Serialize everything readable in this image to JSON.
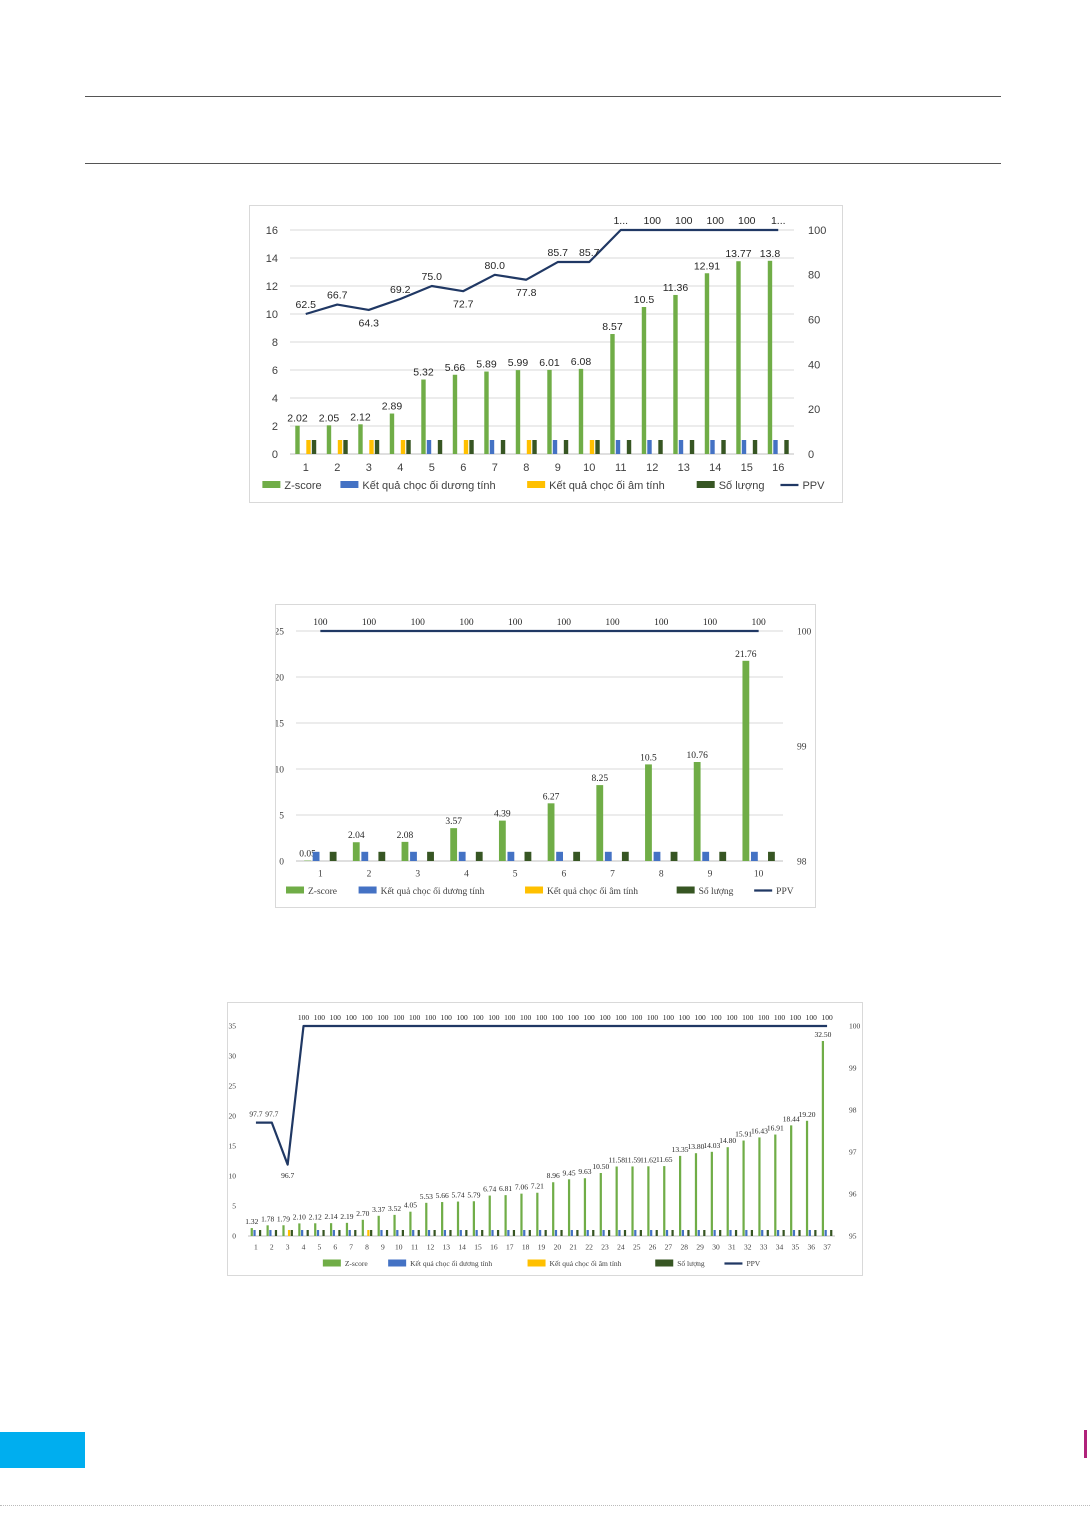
{
  "chart_data": [
    {
      "type": "bar",
      "categories": [
        "1",
        "2",
        "3",
        "4",
        "5",
        "6",
        "7",
        "8",
        "9",
        "10",
        "11",
        "12",
        "13",
        "14",
        "15",
        "16"
      ],
      "series": [
        {
          "name": "Z-score",
          "type": "bar",
          "axis": "left",
          "color": "#70ad47",
          "values": [
            2.02,
            2.05,
            2.12,
            2.89,
            5.32,
            5.66,
            5.89,
            5.99,
            6.01,
            6.08,
            8.57,
            10.5,
            11.36,
            12.91,
            13.77,
            13.8
          ],
          "labels": [
            "2.02",
            "2.05",
            "2.12",
            "2.89",
            "5.32",
            "5.66",
            "5.89",
            "5.99",
            "6.01",
            "6.08",
            "8.57",
            "10.5",
            "11.36",
            "12.91",
            "13.77",
            "13.8"
          ]
        },
        {
          "name": "Kết quả chọc ối dương tính",
          "type": "bar",
          "axis": "left",
          "color": "#4472c4",
          "values": [
            0,
            0,
            0,
            0,
            1,
            0,
            1,
            0,
            1,
            0,
            1,
            1,
            1,
            1,
            1,
            1
          ]
        },
        {
          "name": "Kết quả chọc ối âm tính",
          "type": "bar",
          "axis": "left",
          "color": "#ffc000",
          "values": [
            1,
            1,
            1,
            1,
            0,
            1,
            0,
            1,
            0,
            1,
            0,
            0,
            0,
            0,
            0,
            0
          ]
        },
        {
          "name": "Số lượng",
          "type": "bar",
          "axis": "left",
          "color": "#375623",
          "values": [
            1,
            1,
            1,
            1,
            1,
            1,
            1,
            1,
            1,
            1,
            1,
            1,
            1,
            1,
            1,
            1
          ]
        },
        {
          "name": "PPV",
          "type": "line",
          "axis": "right",
          "color": "#203864",
          "values": [
            62.5,
            66.7,
            64.3,
            69.2,
            75.0,
            72.7,
            80.0,
            77.8,
            85.7,
            85.7,
            100,
            100,
            100,
            100,
            100,
            100
          ],
          "labels": [
            "62.5",
            "66.7",
            "64.3",
            "69.2",
            "75.0",
            "72.7",
            "80.0",
            "77.8",
            "85.7",
            "85.7",
            "1...",
            "100",
            "100",
            "100",
            "100",
            "1..."
          ]
        }
      ],
      "ylim": [
        0,
        16
      ],
      "yticks": [
        "0",
        "2",
        "4",
        "6",
        "8",
        "10",
        "12",
        "14",
        "16"
      ],
      "y2lim": [
        0,
        100
      ],
      "y2ticks": [
        "0",
        "20",
        "40",
        "60",
        "80",
        "100"
      ],
      "grid": true,
      "legend": "bottom"
    },
    {
      "type": "bar",
      "categories": [
        "1",
        "2",
        "3",
        "4",
        "5",
        "6",
        "7",
        "8",
        "9",
        "10"
      ],
      "series": [
        {
          "name": "Z-score",
          "type": "bar",
          "axis": "left",
          "color": "#70ad47",
          "values": [
            0.05,
            2.04,
            2.08,
            3.57,
            4.39,
            6.27,
            8.25,
            10.5,
            10.76,
            21.76
          ],
          "labels": [
            "0.05",
            "2.04",
            "2.08",
            "3.57",
            "4.39",
            "6.27",
            "8.25",
            "10.5",
            "10.76",
            "21.76"
          ]
        },
        {
          "name": "Kết quả chọc ối dương tính",
          "type": "bar",
          "axis": "left",
          "color": "#4472c4",
          "values": [
            1,
            1,
            1,
            1,
            1,
            1,
            1,
            1,
            1,
            1
          ]
        },
        {
          "name": "Kết quả chọc ối âm tính",
          "type": "bar",
          "axis": "left",
          "color": "#ffc000",
          "values": [
            0,
            0,
            0,
            0,
            0,
            0,
            0,
            0,
            0,
            0
          ]
        },
        {
          "name": "Số lượng",
          "type": "bar",
          "axis": "left",
          "color": "#375623",
          "values": [
            1,
            1,
            1,
            1,
            1,
            1,
            1,
            1,
            1,
            1
          ]
        },
        {
          "name": "PPV",
          "type": "line",
          "axis": "right",
          "color": "#203864",
          "values": [
            100,
            100,
            100,
            100,
            100,
            100,
            100,
            100,
            100,
            100
          ],
          "labels": [
            "100",
            "100",
            "100",
            "100",
            "100",
            "100",
            "100",
            "100",
            "100",
            "100"
          ]
        }
      ],
      "ylim": [
        0,
        25
      ],
      "yticks": [
        "0",
        "5",
        "10",
        "15",
        "20",
        "25"
      ],
      "y2lim": [
        98,
        100
      ],
      "y2ticks": [
        "98",
        "99",
        "100"
      ],
      "grid": true,
      "legend": "bottom"
    },
    {
      "type": "bar",
      "categories": [
        "1",
        "2",
        "3",
        "4",
        "5",
        "6",
        "7",
        "8",
        "9",
        "10",
        "11",
        "12",
        "13",
        "14",
        "15",
        "16",
        "17",
        "18",
        "19",
        "20",
        "21",
        "22",
        "23",
        "24",
        "25",
        "26",
        "27",
        "28",
        "29",
        "30",
        "31",
        "32",
        "33",
        "34",
        "35",
        "36",
        "37"
      ],
      "series": [
        {
          "name": "Z-score",
          "type": "bar",
          "axis": "left",
          "color": "#70ad47",
          "values": [
            1.32,
            1.78,
            1.79,
            2.1,
            2.12,
            2.14,
            2.19,
            2.7,
            3.37,
            3.52,
            4.05,
            5.53,
            5.66,
            5.74,
            5.79,
            6.74,
            6.81,
            7.06,
            7.21,
            8.96,
            9.45,
            9.63,
            10.5,
            11.58,
            11.59,
            11.62,
            11.65,
            13.35,
            13.8,
            14.03,
            14.8,
            15.91,
            16.43,
            16.91,
            18.44,
            19.2,
            32.5
          ],
          "labels": [
            "1.32",
            "1.78",
            "1.79",
            "2.10",
            "2.12",
            "2.14",
            "2.19",
            "2.70",
            "3.37",
            "3.52",
            "4.05",
            "5.53",
            "5.66",
            "5.74",
            "5.79",
            "6.74",
            "6.81",
            "7.06",
            "7.21",
            "8.96",
            "9.45",
            "9.63",
            "10.50",
            "11.58",
            "11.59",
            "11.62",
            "11.65",
            "13.35",
            "13.80",
            "14.03",
            "14.80",
            "15.91",
            "16.43",
            "16.91",
            "18.44",
            "19.20",
            "32.50"
          ]
        },
        {
          "name": "Kết quả chọc ối dương tính",
          "type": "bar",
          "axis": "left",
          "color": "#4472c4",
          "values": [
            1,
            1,
            0,
            1,
            1,
            1,
            1,
            0,
            1,
            1,
            1,
            1,
            1,
            1,
            1,
            1,
            1,
            1,
            1,
            1,
            1,
            1,
            1,
            1,
            1,
            1,
            1,
            1,
            1,
            1,
            1,
            1,
            1,
            1,
            1,
            1,
            1
          ]
        },
        {
          "name": "Kết quả chọc ối âm tính",
          "type": "bar",
          "axis": "left",
          "color": "#ffc000",
          "values": [
            0,
            0,
            1,
            0,
            0,
            0,
            0,
            1,
            0,
            0,
            0,
            0,
            0,
            0,
            0,
            0,
            0,
            0,
            0,
            0,
            0,
            0,
            0,
            0,
            0,
            0,
            0,
            0,
            0,
            0,
            0,
            0,
            0,
            0,
            0,
            0,
            0
          ]
        },
        {
          "name": "Số lượng",
          "type": "bar",
          "axis": "left",
          "color": "#375623",
          "values": [
            1,
            1,
            1,
            1,
            1,
            1,
            1,
            1,
            1,
            1,
            1,
            1,
            1,
            1,
            1,
            1,
            1,
            1,
            1,
            1,
            1,
            1,
            1,
            1,
            1,
            1,
            1,
            1,
            1,
            1,
            1,
            1,
            1,
            1,
            1,
            1,
            1
          ]
        },
        {
          "name": "PPV",
          "type": "line",
          "axis": "right",
          "color": "#203864",
          "values": [
            97.7,
            97.7,
            96.7,
            100,
            100,
            100,
            100,
            100,
            100,
            100,
            100,
            100,
            100,
            100,
            100,
            100,
            100,
            100,
            100,
            100,
            100,
            100,
            100,
            100,
            100,
            100,
            100,
            100,
            100,
            100,
            100,
            100,
            100,
            100,
            100,
            100,
            100
          ],
          "labels": [
            "97.7",
            "97.7",
            "96.7",
            "100",
            "100",
            "100",
            "100",
            "100",
            "100",
            "100",
            "100",
            "100",
            "100",
            "100",
            "100",
            "100",
            "100",
            "100",
            "100",
            "100",
            "100",
            "100",
            "100",
            "100",
            "100",
            "100",
            "100",
            "100",
            "100",
            "100",
            "100",
            "100",
            "100",
            "100",
            "100",
            "100",
            "100"
          ]
        }
      ],
      "ylim": [
        0,
        35
      ],
      "yticks": [
        "0",
        "5",
        "10",
        "15",
        "20",
        "25",
        "30",
        "35"
      ],
      "y2lim": [
        95,
        100
      ],
      "y2ticks": [
        "95",
        "96",
        "97",
        "98",
        "99",
        "100"
      ],
      "grid": false,
      "legend": "bottom"
    }
  ]
}
